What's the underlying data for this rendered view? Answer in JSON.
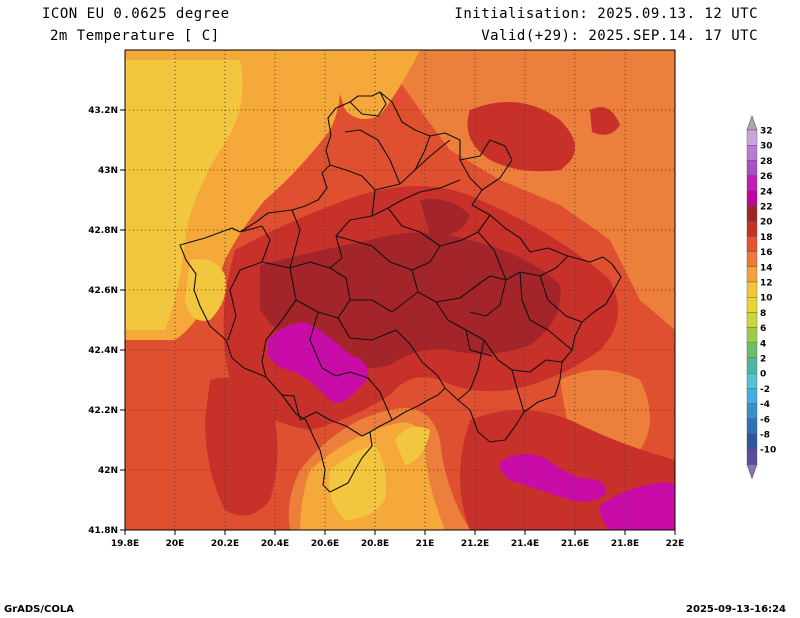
{
  "header": {
    "model": "ICON EU 0.0625 degree",
    "variable": "2m Temperature [ C]",
    "init": "Initialisation: 2025.09.13. 12 UTC",
    "valid": "Valid(+29): 2025.SEP.14. 17 UTC"
  },
  "footer": {
    "left": "GrADS/COLA",
    "right": "2025-09-13-16:24"
  },
  "axes": {
    "lon_labels": [
      "19.8E",
      "20E",
      "20.2E",
      "20.4E",
      "20.6E",
      "20.8E",
      "21E",
      "21.2E",
      "21.4E",
      "21.6E",
      "21.8E",
      "22E"
    ],
    "lat_labels": [
      "41.8N",
      "42N",
      "42.2N",
      "42.4N",
      "42.6N",
      "42.8N",
      "43N",
      "43.2N"
    ]
  },
  "colorbar": {
    "labels": [
      "32",
      "30",
      "28",
      "26",
      "24",
      "22",
      "20",
      "18",
      "16",
      "14",
      "12",
      "10",
      "8",
      "6",
      "4",
      "2",
      "0",
      "-2",
      "-4",
      "-6",
      "-8",
      "-10"
    ],
    "colors": [
      "#c7a4de",
      "#b87ad2",
      "#a94ec6",
      "#c21cb8",
      "#c0059c",
      "#9e2424",
      "#c93128",
      "#e25330",
      "#ec7a3a",
      "#f3a23a",
      "#f6c43a",
      "#e9d530",
      "#cbd83a",
      "#9ccc46",
      "#6cbf6a",
      "#4fb6a0",
      "#56c2d8",
      "#45aee0",
      "#3590cc",
      "#2f70b4",
      "#2e55a2",
      "#5a4d9c"
    ],
    "top_arrow": "#a8a8a8",
    "bottom_arrow": "#8d6fc0"
  },
  "map": {
    "palette": {
      "c14": "#f3c63f",
      "c16": "#f4a93a",
      "c18": "#ec7f3b",
      "c20": "#df5030",
      "c22": "#c8302a",
      "c24": "#a3252a",
      "c26": "#c90ca8"
    }
  }
}
